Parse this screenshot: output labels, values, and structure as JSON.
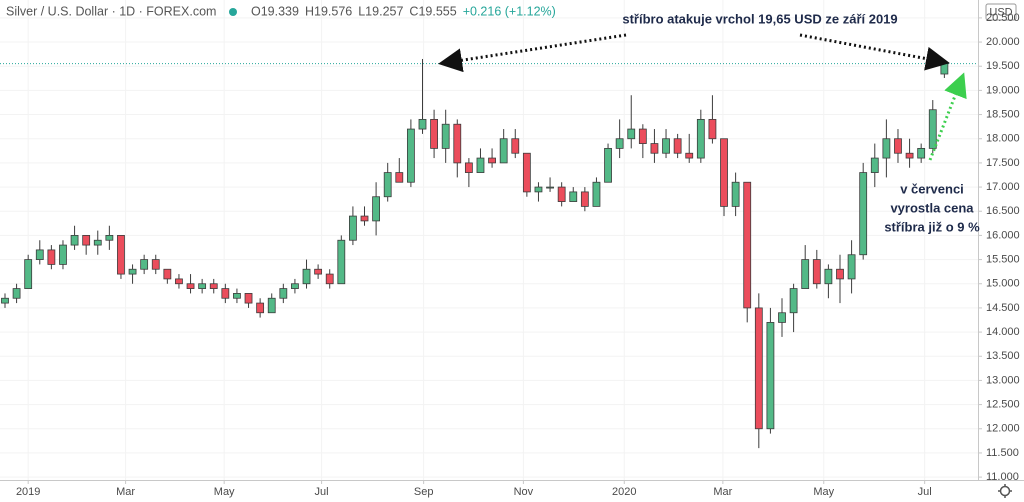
{
  "chart_data": {
    "type": "candlestick",
    "title": "Silver / U.S. Dollar · 1D · FOREX.com",
    "legend": [
      "O19.339",
      "H19.576",
      "L19.257",
      "C19.555",
      "+0.216 (+1.12%)"
    ],
    "currency": "USD",
    "annotations": [
      "stříbro atakuje vrchol 19,65 USD ze září 2019",
      "v červenci",
      "vyrostla cena",
      "stříbra již o 9 %"
    ],
    "up_color": "#53b987",
    "down_color": "#eb4d5c",
    "wick_color": "#3c3c3c",
    "open": [
      14.6,
      14.7,
      14.9,
      15.5,
      15.7,
      15.4,
      15.8,
      16.0,
      15.8,
      15.9,
      16.0,
      15.2,
      15.3,
      15.5,
      15.3,
      15.1,
      15.0,
      14.9,
      15.0,
      14.9,
      14.7,
      14.8,
      14.6,
      14.4,
      14.7,
      14.9,
      15.0,
      15.3,
      15.2,
      15.0,
      15.9,
      16.4,
      16.3,
      16.8,
      17.3,
      17.1,
      18.2,
      18.4,
      17.8,
      18.3,
      17.5,
      17.3,
      17.6,
      17.5,
      18.0,
      17.7,
      16.9,
      17.0,
      17.0,
      16.7,
      16.9,
      16.6,
      17.1,
      17.8,
      18.0,
      18.2,
      17.9,
      17.7,
      18.0,
      17.7,
      17.6,
      18.4,
      18.0,
      16.6,
      17.1,
      14.5,
      12.0,
      14.2,
      14.4,
      14.9,
      15.5,
      15.0,
      15.3,
      15.1,
      15.6,
      17.3,
      17.6,
      18.0,
      17.7,
      17.6,
      17.8,
      19.339
    ],
    "high": [
      14.8,
      15.0,
      15.6,
      15.9,
      15.8,
      15.9,
      16.2,
      16.0,
      16.1,
      16.2,
      16.0,
      15.4,
      15.6,
      15.6,
      15.3,
      15.2,
      15.2,
      15.1,
      15.1,
      15.0,
      14.9,
      14.8,
      14.7,
      14.8,
      15.0,
      15.1,
      15.5,
      15.4,
      15.3,
      16.0,
      16.6,
      16.6,
      17.1,
      17.5,
      17.6,
      18.4,
      19.65,
      18.6,
      18.6,
      18.4,
      17.6,
      17.8,
      17.8,
      18.2,
      18.2,
      17.7,
      17.1,
      17.2,
      17.1,
      17.0,
      17.0,
      17.2,
      17.9,
      18.4,
      18.9,
      18.3,
      18.2,
      18.2,
      18.1,
      18.1,
      18.6,
      18.9,
      18.0,
      17.3,
      17.1,
      14.8,
      14.5,
      14.7,
      15.0,
      15.8,
      15.7,
      15.4,
      15.6,
      15.9,
      17.5,
      17.9,
      18.4,
      18.2,
      18.0,
      17.9,
      18.8,
      19.576
    ],
    "low": [
      14.5,
      14.6,
      14.9,
      15.4,
      15.3,
      15.3,
      15.7,
      15.6,
      15.6,
      15.7,
      15.1,
      15.0,
      15.2,
      15.2,
      15.0,
      14.9,
      14.8,
      14.8,
      14.8,
      14.6,
      14.6,
      14.5,
      14.3,
      14.4,
      14.6,
      14.8,
      14.9,
      15.1,
      14.9,
      15.0,
      15.8,
      16.2,
      16.0,
      16.7,
      17.1,
      17.0,
      18.1,
      17.6,
      17.5,
      17.2,
      17.0,
      17.3,
      17.4,
      17.5,
      17.6,
      16.8,
      16.7,
      16.9,
      16.6,
      16.7,
      16.5,
      16.6,
      17.1,
      17.6,
      17.8,
      17.6,
      17.5,
      17.6,
      17.6,
      17.5,
      17.5,
      17.9,
      16.4,
      16.4,
      14.2,
      11.6,
      11.9,
      13.9,
      14.0,
      14.9,
      14.9,
      14.7,
      14.6,
      14.8,
      15.5,
      17.0,
      17.2,
      17.5,
      17.4,
      17.5,
      17.7,
      19.257
    ],
    "close": [
      14.7,
      14.9,
      15.5,
      15.7,
      15.4,
      15.8,
      16.0,
      15.8,
      15.9,
      16.0,
      15.2,
      15.3,
      15.5,
      15.3,
      15.1,
      15.0,
      14.9,
      15.0,
      14.9,
      14.7,
      14.8,
      14.6,
      14.4,
      14.7,
      14.9,
      15.0,
      15.3,
      15.2,
      15.0,
      15.9,
      16.4,
      16.3,
      16.8,
      17.3,
      17.1,
      18.2,
      18.4,
      17.8,
      18.3,
      17.5,
      17.3,
      17.6,
      17.5,
      18.0,
      17.7,
      16.9,
      17.0,
      17.0,
      16.7,
      16.9,
      16.6,
      17.1,
      17.8,
      18.0,
      18.2,
      17.9,
      17.7,
      18.0,
      17.7,
      17.6,
      18.4,
      18.0,
      16.6,
      17.1,
      14.5,
      12.0,
      14.2,
      14.4,
      14.9,
      15.5,
      15.0,
      15.3,
      15.1,
      15.6,
      17.3,
      17.6,
      18.0,
      17.7,
      17.6,
      17.8,
      18.6,
      19.555
    ],
    "xlim": [
      -0.43,
      83.9
    ],
    "xticks": [
      {
        "value": 2,
        "label": "2019"
      },
      {
        "value": 10.4,
        "label": "Mar"
      },
      {
        "value": 18.9,
        "label": "May"
      },
      {
        "value": 27.3,
        "label": "Jul"
      },
      {
        "value": 36.1,
        "label": "Sep"
      },
      {
        "value": 44.7,
        "label": "Nov"
      },
      {
        "value": 53.4,
        "label": "2020"
      },
      {
        "value": 61.9,
        "label": "Mar"
      },
      {
        "value": 70.6,
        "label": "May"
      },
      {
        "value": 79.3,
        "label": "Jul"
      }
    ],
    "ylim": [
      10.94,
      20.87
    ],
    "yticks": [
      {
        "value": 11,
        "label": "11.000"
      },
      {
        "value": 11.5,
        "label": "11.500"
      },
      {
        "value": 12,
        "label": "12.000"
      },
      {
        "value": 12.5,
        "label": "12.500"
      },
      {
        "value": 13,
        "label": "13.000"
      },
      {
        "value": 13.5,
        "label": "13.500"
      },
      {
        "value": 14,
        "label": "14.000"
      },
      {
        "value": 14.5,
        "label": "14.500"
      },
      {
        "value": 15,
        "label": "15.000"
      },
      {
        "value": 15.5,
        "label": "15.500"
      },
      {
        "value": 16,
        "label": "16.000"
      },
      {
        "value": 16.5,
        "label": "16.500"
      },
      {
        "value": 17,
        "label": "17.000"
      },
      {
        "value": 17.5,
        "label": "17.500"
      },
      {
        "value": 18,
        "label": "18.000"
      },
      {
        "value": 18.5,
        "label": "18.500"
      },
      {
        "value": 19,
        "label": "19.000"
      },
      {
        "value": 19.5,
        "label": "19.500"
      },
      {
        "value": 20,
        "label": "20.000"
      },
      {
        "value": 20.5,
        "label": "20.500"
      }
    ]
  }
}
